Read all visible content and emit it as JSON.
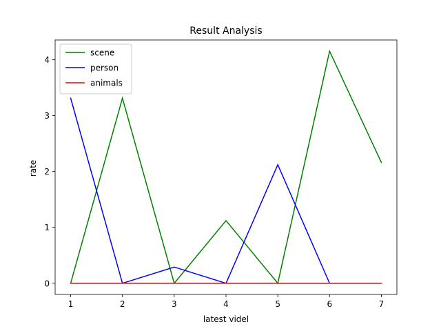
{
  "chart_data": {
    "type": "line",
    "title": "Result Analysis",
    "xlabel": "latest videl",
    "ylabel": "rate",
    "x": [
      1,
      2,
      3,
      4,
      5,
      6,
      7
    ],
    "xlim": [
      0.7,
      7.3
    ],
    "ylim": [
      -0.2,
      4.35
    ],
    "xticks": [
      1,
      2,
      3,
      4,
      5,
      6,
      7
    ],
    "yticks": [
      0,
      1,
      2,
      3,
      4
    ],
    "grid": false,
    "legend_position": "top-left",
    "series": [
      {
        "name": "scene",
        "color": "#008000",
        "values": [
          0,
          3.31,
          0,
          1.12,
          0,
          4.15,
          2.16
        ]
      },
      {
        "name": "person",
        "color": "#0000ff",
        "values": [
          3.31,
          0,
          0.29,
          0,
          2.12,
          0,
          0
        ]
      },
      {
        "name": "animals",
        "color": "#ff0000",
        "values": [
          0,
          0,
          0,
          0,
          0,
          0,
          0
        ]
      }
    ]
  }
}
